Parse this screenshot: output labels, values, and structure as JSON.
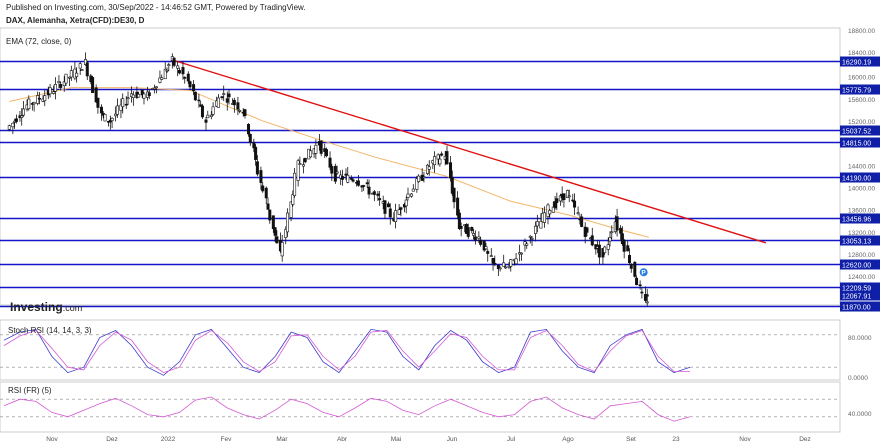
{
  "header": {
    "published": "Published on Investing.com, 30/Sep/2022 - 14:46:52 GMT, Powered by TradingView.",
    "instrument": "DAX, Alemanha, Xetra(CFD):DE30, D",
    "ema_label": "EMA (72, close, 0)",
    "logo_main": "Investing",
    "logo_suffix": ".com"
  },
  "chart_data": [
    {
      "type": "line",
      "name": "price",
      "ylim": [
        11800,
        18800
      ],
      "yticks": [
        18800,
        18400,
        16000,
        15600,
        15200,
        14400,
        14000,
        13600,
        13200,
        12800,
        12400
      ],
      "ytick_labels": [
        "18800.00",
        "18400.00",
        "16000.00",
        "15600.00",
        "15200.00",
        "14400.00",
        "14000.00",
        "13600.00",
        "13200.00",
        "12800.00",
        "12400.00"
      ],
      "x_labels": [
        "Nov",
        "Dez",
        "2022",
        "Fev",
        "Mar",
        "Abr",
        "Mai",
        "Jun",
        "Jul",
        "Ago",
        "Set",
        "23",
        "Nov",
        "Dez"
      ],
      "horizontal_levels": [
        {
          "value": 16290.19,
          "label": "16290.19"
        },
        {
          "value": 15775.79,
          "label": "15775.79"
        },
        {
          "value": 15037.52,
          "label": "15037.52"
        },
        {
          "value": 14815.0,
          "label": "14815.00"
        },
        {
          "value": 14190.0,
          "label": "14190.00"
        },
        {
          "value": 13456.96,
          "label": "13456.96"
        },
        {
          "value": 13053.13,
          "label": "13053.13"
        },
        {
          "value": 12620.0,
          "label": "12620.00"
        },
        {
          "value": 12209.59,
          "label": "12209.59"
        },
        {
          "value": 11870.0,
          "label": "11870.00"
        }
      ],
      "current_price": {
        "value": 12067.91,
        "label": "12067.91"
      },
      "trendline": {
        "from": [
          "2022-01-05",
          16290
        ],
        "to": [
          "2022-12-05",
          13000
        ]
      },
      "price_series": [
        [
          "2021-10-04",
          15050
        ],
        [
          "2021-10-15",
          15480
        ],
        [
          "2021-10-27",
          15700
        ],
        [
          "2021-11-08",
          16000
        ],
        [
          "2021-11-17",
          16250
        ],
        [
          "2021-11-26",
          15300
        ],
        [
          "2021-12-01",
          15200
        ],
        [
          "2021-12-13",
          15700
        ],
        [
          "2021-12-22",
          15650
        ],
        [
          "2022-01-05",
          16280
        ],
        [
          "2022-01-14",
          15900
        ],
        [
          "2022-01-24",
          15200
        ],
        [
          "2022-02-02",
          15700
        ],
        [
          "2022-02-14",
          15400
        ],
        [
          "2022-02-24",
          14100
        ],
        [
          "2022-03-07",
          12800
        ],
        [
          "2022-03-17",
          14400
        ],
        [
          "2022-03-29",
          14800
        ],
        [
          "2022-04-07",
          14200
        ],
        [
          "2022-04-19",
          14150
        ],
        [
          "2022-04-28",
          13900
        ],
        [
          "2022-05-10",
          13450
        ],
        [
          "2022-05-20",
          13950
        ],
        [
          "2022-06-01",
          14450
        ],
        [
          "2022-06-08",
          14600
        ],
        [
          "2022-06-16",
          13300
        ],
        [
          "2022-06-27",
          13100
        ],
        [
          "2022-07-05",
          12600
        ],
        [
          "2022-07-14",
          12550
        ],
        [
          "2022-07-26",
          13100
        ],
        [
          "2022-08-05",
          13600
        ],
        [
          "2022-08-16",
          13900
        ],
        [
          "2022-08-26",
          13200
        ],
        [
          "2022-09-05",
          12750
        ],
        [
          "2022-09-12",
          13400
        ],
        [
          "2022-09-20",
          12700
        ],
        [
          "2022-09-29",
          11900
        ],
        [
          "2022-09-30",
          12068
        ]
      ],
      "ema72": [
        [
          "2021-10-04",
          15550
        ],
        [
          "2021-11-08",
          15800
        ],
        [
          "2021-12-13",
          15800
        ],
        [
          "2022-01-14",
          15750
        ],
        [
          "2022-02-24",
          15200
        ],
        [
          "2022-03-29",
          14850
        ],
        [
          "2022-04-28",
          14550
        ],
        [
          "2022-06-08",
          14200
        ],
        [
          "2022-07-14",
          13750
        ],
        [
          "2022-08-16",
          13500
        ],
        [
          "2022-09-12",
          13250
        ],
        [
          "2022-09-30",
          13100
        ]
      ]
    },
    {
      "type": "line",
      "name": "Stoch RSI (14, 14, 3, 3)",
      "ylim": [
        0,
        100
      ],
      "ytick_labels": [
        "80.0000",
        "0.0000"
      ],
      "series": [
        {
          "name": "k",
          "values": [
            70,
            85,
            90,
            40,
            10,
            20,
            75,
            88,
            60,
            20,
            5,
            30,
            80,
            90,
            55,
            20,
            10,
            40,
            85,
            75,
            30,
            10,
            50,
            90,
            85,
            40,
            15,
            60,
            88,
            70,
            30,
            10,
            20,
            85,
            90,
            50,
            20,
            10,
            60,
            80,
            90,
            30,
            10,
            20
          ]
        },
        {
          "name": "d",
          "values": [
            60,
            78,
            88,
            55,
            20,
            15,
            60,
            85,
            70,
            30,
            10,
            20,
            70,
            88,
            65,
            30,
            12,
            30,
            78,
            80,
            40,
            15,
            40,
            85,
            88,
            50,
            20,
            50,
            82,
            75,
            40,
            15,
            15,
            75,
            88,
            60,
            25,
            12,
            50,
            78,
            88,
            40,
            12,
            12
          ]
        }
      ]
    },
    {
      "type": "line",
      "name": "RSI (FR) (5)",
      "ylim": [
        0,
        100
      ],
      "ytick_labels": [
        "40.0000"
      ],
      "series": [
        {
          "name": "rsi",
          "values": [
            55,
            70,
            65,
            40,
            30,
            45,
            60,
            72,
            55,
            35,
            30,
            40,
            68,
            75,
            50,
            35,
            25,
            45,
            70,
            60,
            40,
            30,
            50,
            72,
            65,
            45,
            35,
            55,
            70,
            55,
            40,
            30,
            35,
            65,
            75,
            50,
            35,
            25,
            55,
            60,
            65,
            35,
            20,
            30
          ]
        }
      ]
    }
  ]
}
